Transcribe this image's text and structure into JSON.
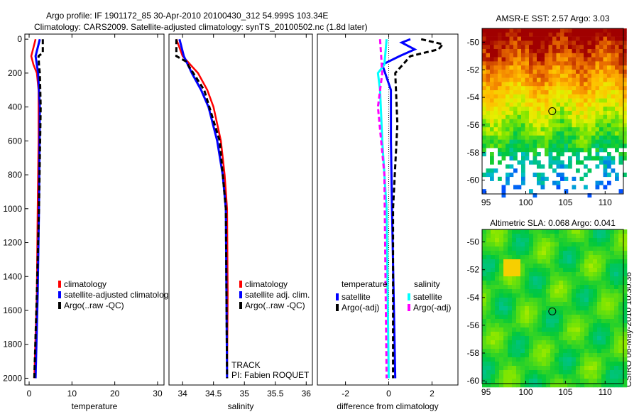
{
  "title_line1": "Argo profile: IF 1901172_85 30-Apr-2010 20100430_312 54.999S 103.34E",
  "title_line2": "Climatology: CARS2009. Satellite-adjusted climatology: synTS_20100502.nc (1.8d later)",
  "side_label": "CSIRO 06-May-2010 10:30:36",
  "track_label": "TRACK",
  "pi_label": "PI: Fabien ROQUET",
  "chart_data": [
    {
      "type": "line",
      "id": "temperature",
      "xlabel": "temperature",
      "ylabel": "",
      "xlim": [
        -1,
        31.5
      ],
      "ylim": [
        2040,
        -30
      ],
      "xticks": [
        0,
        10,
        20,
        30
      ],
      "yticks": [
        0,
        200,
        400,
        600,
        800,
        1000,
        1200,
        1400,
        1600,
        1800,
        2000
      ],
      "legend": [
        "climatology",
        "satellite-adjusted climatolog",
        "Argo(..raw -QC)"
      ],
      "series": [
        {
          "name": "climatology",
          "color": "#ff0000",
          "dash": false,
          "depth": [
            0,
            50,
            100,
            150,
            200,
            300,
            600,
            1000,
            1500,
            2000
          ],
          "values": [
            1.5,
            1.0,
            0.5,
            1.0,
            1.8,
            2.2,
            2.2,
            2.0,
            1.8,
            1.2
          ]
        },
        {
          "name": "satellite-adjusted climatology",
          "color": "#0000ff",
          "dash": false,
          "depth": [
            0,
            50,
            100,
            150,
            200,
            400,
            1000,
            1500,
            2000
          ],
          "values": [
            2.5,
            2.0,
            1.5,
            1.8,
            2.1,
            2.5,
            2.3,
            2.0,
            1.5
          ]
        },
        {
          "name": "Argo(..raw -QC)",
          "color": "#000000",
          "dash": true,
          "depth": [
            0,
            80,
            100,
            150,
            200,
            400,
            1000,
            1500,
            2000
          ],
          "values": [
            3.2,
            3.2,
            2.2,
            2.3,
            2.5,
            2.7,
            2.3,
            1.8,
            1.2
          ]
        }
      ]
    },
    {
      "type": "line",
      "id": "salinity",
      "xlabel": "salinity",
      "xlim": [
        33.78,
        36.1
      ],
      "ylim": [
        2040,
        -30
      ],
      "xticks": [
        34,
        34.5,
        35,
        35.5,
        36
      ],
      "legend": [
        "climatology",
        "satellite adj. clim.",
        "Argo(..raw -QC)"
      ],
      "series": [
        {
          "name": "climatology",
          "color": "#ff0000",
          "dash": false,
          "depth": [
            0,
            100,
            200,
            300,
            400,
            600,
            800,
            1000,
            1500,
            2000
          ],
          "values": [
            33.9,
            34.0,
            34.25,
            34.4,
            34.5,
            34.62,
            34.68,
            34.72,
            34.73,
            34.72
          ]
        },
        {
          "name": "satellite adj. clim.",
          "color": "#0000ff",
          "dash": false,
          "depth": [
            0,
            100,
            200,
            300,
            400,
            600,
            800,
            1000,
            2000
          ],
          "values": [
            33.95,
            34.02,
            34.15,
            34.3,
            34.42,
            34.56,
            34.65,
            34.7,
            34.72
          ]
        },
        {
          "name": "Argo(..raw -QC)",
          "color": "#000000",
          "dash": true,
          "depth": [
            0,
            100,
            130,
            300,
            600,
            1000,
            2000
          ],
          "values": [
            33.9,
            33.9,
            34.05,
            34.35,
            34.6,
            34.7,
            34.72
          ]
        }
      ]
    },
    {
      "type": "line",
      "id": "difference",
      "xlabel": "difference from climatology",
      "xlim": [
        -3.3,
        3.2
      ],
      "ylim": [
        2040,
        -30
      ],
      "xticks": [
        -2,
        0,
        2
      ],
      "legend_temperature_title": "temperature",
      "legend_salinity_title": "salinity",
      "legend": [
        "satellite",
        "Argo(-adj)",
        "satellite",
        "Argo(-adj)"
      ],
      "series": [
        {
          "name": "temperature satellite",
          "color": "#0000ff",
          "dash": false,
          "depth": [
            0,
            20,
            60,
            100,
            150,
            300,
            600,
            1000,
            2000
          ],
          "values": [
            1.0,
            0.6,
            1.2,
            0.5,
            -0.3,
            0.1,
            0.1,
            0.15,
            0.3
          ]
        },
        {
          "name": "temperature Argo(-adj)",
          "color": "#000000",
          "dash": true,
          "depth": [
            0,
            30,
            60,
            100,
            200,
            500,
            1000,
            2000
          ],
          "values": [
            1.5,
            2.5,
            2.3,
            1.0,
            0.3,
            0.4,
            0.2,
            0.2
          ]
        },
        {
          "name": "salinity satellite",
          "color": "#00ffff",
          "dash": false,
          "depth": [
            0,
            150,
            200,
            300,
            600,
            1000,
            2000
          ],
          "values": [
            -0.1,
            -0.2,
            -0.5,
            -0.4,
            -0.3,
            -0.1,
            0.0
          ]
        },
        {
          "name": "salinity Argo(-adj)",
          "color": "#ff00ff",
          "dash": true,
          "depth": [
            0,
            200,
            400,
            800,
            2000
          ],
          "values": [
            -0.4,
            -0.3,
            -0.5,
            -0.2,
            -0.1
          ]
        }
      ]
    },
    {
      "type": "heatmap",
      "id": "sst-map",
      "title": "AMSR-E SST: 2.57 Argo: 3.03",
      "xlim": [
        94.5,
        112.3
      ],
      "ylim": [
        -61,
        -49
      ],
      "xticks": [
        95,
        100,
        105,
        110
      ],
      "yticks": [
        -50,
        -52,
        -54,
        -56,
        -58,
        -60
      ],
      "marker": {
        "lon": 103.34,
        "lat": -55.0
      }
    },
    {
      "type": "heatmap",
      "id": "sla-map",
      "title": "Altimetric SLA: 0.068 Argo: 0.041",
      "xlim": [
        94.5,
        112.3
      ],
      "ylim": [
        -60.2,
        -49.1
      ],
      "xticks": [
        95,
        100,
        105,
        110
      ],
      "yticks": [
        -50,
        -52,
        -54,
        -56,
        -58,
        -60
      ],
      "marker": {
        "lon": 103.34,
        "lat": -55.0
      }
    }
  ]
}
